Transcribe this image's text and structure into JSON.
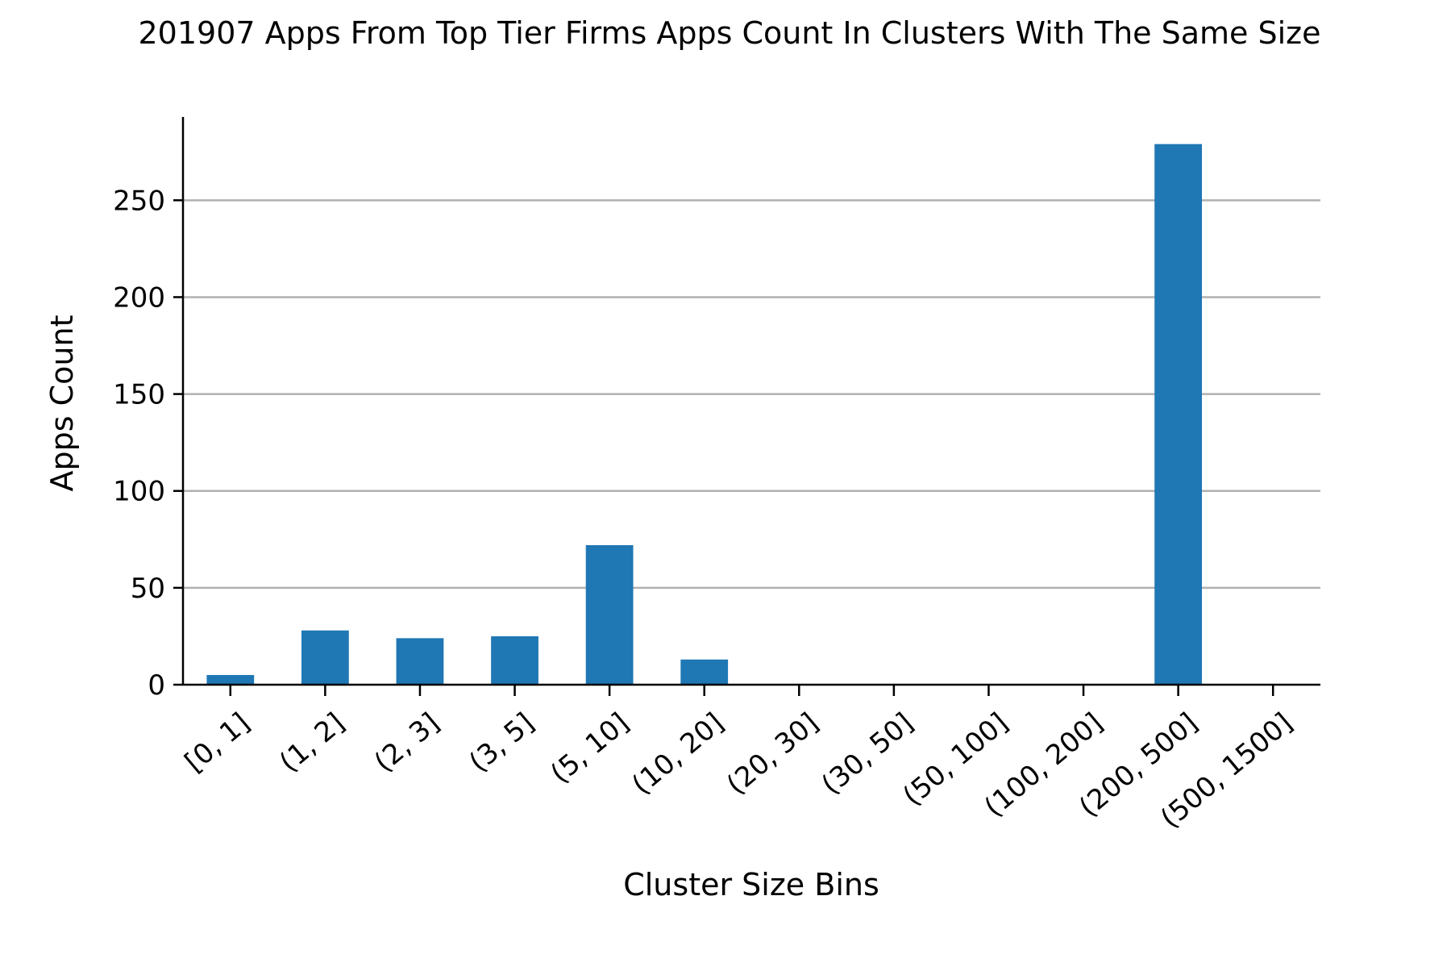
{
  "chart_data": {
    "type": "bar",
    "title": "201907 Apps From Top Tier Firms Apps Count In Clusters With The Same Size",
    "xlabel": "Cluster Size Bins",
    "ylabel": "Apps Count",
    "categories": [
      "[0, 1]",
      "(1, 2]",
      "(2, 3]",
      "(3, 5]",
      "(5, 10]",
      "(10, 20]",
      "(20, 30]",
      "(30, 50]",
      "(50, 100]",
      "(100, 200]",
      "(200, 500]",
      "(500, 1500]"
    ],
    "values": [
      5,
      28,
      24,
      25,
      72,
      13,
      0,
      0,
      0,
      0,
      279,
      0
    ],
    "ylim": [
      0,
      293
    ],
    "yticks": [
      0,
      50,
      100,
      150,
      200,
      250
    ],
    "grid": "y",
    "bar_color": "#1f77b4"
  }
}
